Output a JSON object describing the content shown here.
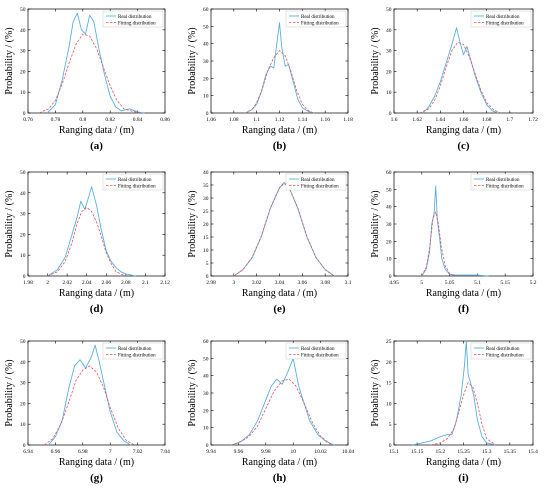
{
  "legend": {
    "real": "Real distribution",
    "fit": "Fitting distribution"
  },
  "colors": {
    "real": "#5ab0e0",
    "fit": "#e2535a",
    "axis": "#000000",
    "panel_bg": "#ffffff"
  },
  "chart_data": [
    {
      "type": "line",
      "panel": "a",
      "caption": "(a)",
      "xlabel": "Ranging data / (m)",
      "ylabel": "Probability / (%)",
      "xlim": [
        0.76,
        0.86
      ],
      "ylim": [
        0,
        50
      ],
      "xticks": [
        "0.76",
        "0.78",
        "0.8",
        "0.82",
        "0.84",
        "0.86"
      ],
      "yticks": [
        "0",
        "10",
        "20",
        "30",
        "40",
        "50"
      ],
      "legend_position": "top-right",
      "series": [
        {
          "name": "Real distribution",
          "x": [
            0.774,
            0.78,
            0.785,
            0.79,
            0.793,
            0.796,
            0.799,
            0.802,
            0.805,
            0.808,
            0.812,
            0.816,
            0.82,
            0.824,
            0.828,
            0.834,
            0.84,
            0.845
          ],
          "y": [
            0,
            4,
            16,
            32,
            44,
            48,
            40,
            38,
            47,
            44,
            30,
            18,
            8,
            3,
            1,
            2,
            0.5,
            0
          ]
        },
        {
          "name": "Fitting distribution",
          "x": [
            0.768,
            0.775,
            0.78,
            0.785,
            0.79,
            0.795,
            0.8,
            0.805,
            0.81,
            0.815,
            0.82,
            0.825,
            0.83,
            0.835,
            0.842
          ],
          "y": [
            0,
            2,
            6,
            14,
            24,
            33,
            38,
            37,
            31,
            22,
            13,
            6,
            2,
            1,
            0
          ]
        }
      ]
    },
    {
      "type": "line",
      "panel": "b",
      "caption": "(b)",
      "xlabel": "Ranging data / (m)",
      "ylabel": "Probability / (%)",
      "xlim": [
        1.06,
        1.18
      ],
      "ylim": [
        0,
        60
      ],
      "xticks": [
        "1.06",
        "1.08",
        "1.1",
        "1.12",
        "1.14",
        "1.16",
        "1.18"
      ],
      "yticks": [
        "0",
        "10",
        "20",
        "30",
        "40",
        "50",
        "60"
      ],
      "legend_position": "top-right",
      "series": [
        {
          "name": "Real distribution",
          "x": [
            1.09,
            1.096,
            1.1,
            1.104,
            1.108,
            1.112,
            1.115,
            1.118,
            1.12,
            1.122,
            1.125,
            1.128,
            1.132,
            1.136,
            1.14,
            1.145,
            1.15
          ],
          "y": [
            0,
            2,
            5,
            12,
            22,
            27,
            26,
            42,
            52,
            38,
            27,
            28,
            18,
            8,
            3,
            1,
            0
          ]
        },
        {
          "name": "Fitting distribution",
          "x": [
            1.09,
            1.096,
            1.1,
            1.105,
            1.11,
            1.115,
            1.12,
            1.125,
            1.13,
            1.135,
            1.14,
            1.145,
            1.15
          ],
          "y": [
            0,
            2,
            6,
            14,
            25,
            32,
            36,
            33,
            24,
            13,
            5,
            1.5,
            0
          ]
        }
      ]
    },
    {
      "type": "line",
      "panel": "c",
      "caption": "(c)",
      "xlabel": "Ranging data / (m)",
      "ylabel": "Probability / (%)",
      "xlim": [
        1.6,
        1.72
      ],
      "ylim": [
        0,
        50
      ],
      "xticks": [
        "1.6",
        "1.62",
        "1.64",
        "1.66",
        "1.68",
        "1.7",
        "1.72"
      ],
      "yticks": [
        "0",
        "10",
        "20",
        "30",
        "40",
        "50"
      ],
      "legend_position": "top-right",
      "series": [
        {
          "name": "Real distribution",
          "x": [
            1.625,
            1.63,
            1.635,
            1.64,
            1.645,
            1.65,
            1.654,
            1.657,
            1.66,
            1.663,
            1.666,
            1.67,
            1.675,
            1.68,
            1.685,
            1.69
          ],
          "y": [
            0,
            3,
            8,
            15,
            24,
            33,
            41,
            34,
            28,
            32,
            26,
            18,
            10,
            4,
            1,
            0
          ]
        },
        {
          "name": "Fitting distribution",
          "x": [
            1.622,
            1.63,
            1.635,
            1.64,
            1.645,
            1.65,
            1.655,
            1.66,
            1.665,
            1.67,
            1.675,
            1.68,
            1.686,
            1.692
          ],
          "y": [
            0,
            2,
            6,
            13,
            22,
            30,
            34,
            33,
            27,
            19,
            11,
            5,
            1.5,
            0
          ]
        }
      ]
    },
    {
      "type": "line",
      "panel": "d",
      "caption": "(d)",
      "xlabel": "Ranging data / (m)",
      "ylabel": "Probability / (%)",
      "xlim": [
        1.98,
        2.12
      ],
      "ylim": [
        0,
        50
      ],
      "xticks": [
        "1.98",
        "2",
        "2.02",
        "2.04",
        "2.06",
        "2.08",
        "2.1",
        "2.12"
      ],
      "yticks": [
        "0",
        "10",
        "20",
        "30",
        "40",
        "50"
      ],
      "legend_position": "top-right",
      "series": [
        {
          "name": "Real distribution",
          "x": [
            2.0,
            2.01,
            2.018,
            2.025,
            2.03,
            2.034,
            2.038,
            2.042,
            2.045,
            2.05,
            2.055,
            2.06,
            2.065,
            2.07,
            2.075,
            2.08,
            2.09
          ],
          "y": [
            0,
            3,
            9,
            20,
            28,
            36,
            32,
            38,
            43,
            34,
            22,
            12,
            7,
            4,
            2,
            1,
            0
          ]
        },
        {
          "name": "Fitting distribution",
          "x": [
            2.0,
            2.01,
            2.018,
            2.025,
            2.03,
            2.035,
            2.04,
            2.045,
            2.05,
            2.055,
            2.06,
            2.065,
            2.07,
            2.08
          ],
          "y": [
            0,
            2,
            7,
            16,
            25,
            31,
            33,
            31,
            26,
            19,
            11,
            6,
            2,
            0
          ]
        }
      ]
    },
    {
      "type": "line",
      "panel": "e",
      "caption": "(e)",
      "xlabel": "Ranging data / (m)",
      "ylabel": "Probability / (%)",
      "xlim": [
        2.98,
        3.1
      ],
      "ylim": [
        0,
        40
      ],
      "xticks": [
        "2.98",
        "3",
        "3.02",
        "3.04",
        "3.06",
        "3.08",
        "3.1"
      ],
      "yticks": [
        "0",
        "5",
        "10",
        "15",
        "20",
        "25",
        "30",
        "35",
        "40"
      ],
      "legend_position": "top-right",
      "series": [
        {
          "name": "Real distribution",
          "x": [
            3.0,
            3.008,
            3.016,
            3.024,
            3.032,
            3.04,
            3.044,
            3.048,
            3.056,
            3.064,
            3.072,
            3.08,
            3.088
          ],
          "y": [
            0,
            2.5,
            7,
            15,
            26,
            34,
            36,
            34.5,
            26,
            15,
            7,
            2.5,
            0
          ]
        },
        {
          "name": "Fitting distribution",
          "x": [
            3.0,
            3.008,
            3.016,
            3.024,
            3.032,
            3.04,
            3.044,
            3.048,
            3.056,
            3.064,
            3.072,
            3.08,
            3.088
          ],
          "y": [
            0,
            2.4,
            7.2,
            15.3,
            26.2,
            33.8,
            35.6,
            34.2,
            26.3,
            15.2,
            7.1,
            2.4,
            0
          ]
        }
      ]
    },
    {
      "type": "line",
      "panel": "f",
      "caption": "(f)",
      "xlabel": "Ranging data / (m)",
      "ylabel": "Probability / (%)",
      "xlim": [
        4.95,
        5.2
      ],
      "ylim": [
        0,
        60
      ],
      "xticks": [
        "4.95",
        "5",
        "5.05",
        "5.1",
        "5.15",
        "5.2"
      ],
      "yticks": [
        "0",
        "10",
        "20",
        "30",
        "40",
        "50",
        "60"
      ],
      "legend_position": "top-right",
      "series": [
        {
          "name": "Real distribution",
          "x": [
            5.0,
            5.008,
            5.014,
            5.018,
            5.022,
            5.025,
            5.028,
            5.032,
            5.036,
            5.042,
            5.05,
            5.06,
            5.08,
            5.1,
            5.12
          ],
          "y": [
            0,
            4,
            14,
            30,
            36,
            52,
            32,
            22,
            10,
            4,
            1,
            0.5,
            0.5,
            0.5,
            0
          ]
        },
        {
          "name": "Fitting distribution",
          "x": [
            5.0,
            5.008,
            5.014,
            5.02,
            5.025,
            5.03,
            5.035,
            5.042,
            5.05,
            5.06
          ],
          "y": [
            0,
            5,
            16,
            33,
            37,
            30,
            17,
            6,
            1.5,
            0
          ]
        }
      ]
    },
    {
      "type": "line",
      "panel": "g",
      "caption": "(g)",
      "xlabel": "Ranging data / (m)",
      "ylabel": "Probability / (%)",
      "xlim": [
        6.94,
        7.04
      ],
      "ylim": [
        0,
        50
      ],
      "xticks": [
        "6.94",
        "6.96",
        "6.98",
        "7",
        "7.02",
        "7.04"
      ],
      "yticks": [
        "0",
        "10",
        "20",
        "30",
        "40",
        "50"
      ],
      "legend_position": "top-right",
      "series": [
        {
          "name": "Real distribution",
          "x": [
            6.955,
            6.96,
            6.965,
            6.97,
            6.974,
            6.978,
            6.982,
            6.986,
            6.989,
            6.992,
            6.996,
            7.0,
            7.005,
            7.01,
            7.015
          ],
          "y": [
            0,
            4,
            12,
            28,
            38,
            41,
            37,
            42,
            48,
            40,
            28,
            16,
            6,
            2,
            0
          ]
        },
        {
          "name": "Fitting distribution",
          "x": [
            6.952,
            6.958,
            6.964,
            6.97,
            6.975,
            6.98,
            6.985,
            6.99,
            6.995,
            7.0,
            7.006,
            7.012,
            7.018
          ],
          "y": [
            0,
            3,
            10,
            21,
            31,
            36,
            38,
            35,
            28,
            18,
            8,
            2,
            0
          ]
        }
      ]
    },
    {
      "type": "line",
      "panel": "h",
      "caption": "(h)",
      "xlabel": "Ranging data / (m)",
      "ylabel": "Probability / (%)",
      "xlim": [
        9.94,
        10.04
      ],
      "ylim": [
        0,
        60
      ],
      "xticks": [
        "9.94",
        "9.96",
        "9.98",
        "10",
        "10.02",
        "10.04"
      ],
      "yticks": [
        "0",
        "10",
        "20",
        "30",
        "40",
        "50",
        "60"
      ],
      "legend_position": "top-right",
      "series": [
        {
          "name": "Real distribution",
          "x": [
            9.955,
            9.962,
            9.968,
            9.974,
            9.979,
            9.984,
            9.988,
            9.992,
            9.996,
            10.0,
            10.004,
            10.008,
            10.012,
            10.018,
            10.024,
            10.03
          ],
          "y": [
            0,
            2,
            6,
            14,
            24,
            34,
            38,
            35,
            42,
            50,
            34,
            24,
            14,
            6,
            2,
            0
          ]
        },
        {
          "name": "Fitting distribution",
          "x": [
            9.955,
            9.962,
            9.968,
            9.974,
            9.98,
            9.986,
            9.992,
            9.997,
            10.002,
            10.008,
            10.014,
            10.02,
            10.028
          ],
          "y": [
            0,
            2,
            5,
            11,
            21,
            31,
            37,
            38,
            34,
            24,
            13,
            5,
            0
          ]
        }
      ]
    },
    {
      "type": "line",
      "panel": "i",
      "caption": "(i)",
      "xlabel": "Ranging data / (m)",
      "ylabel": "Probability / (%)",
      "xlim": [
        15.1,
        15.4
      ],
      "ylim": [
        0,
        25
      ],
      "xticks": [
        "15.1",
        "15.15",
        "15.2",
        "15.25",
        "15.3",
        "15.35",
        "15.4"
      ],
      "yticks": [
        "0",
        "5",
        "10",
        "15",
        "20",
        "25"
      ],
      "legend_position": "top-right",
      "series": [
        {
          "name": "Real distribution",
          "x": [
            15.14,
            15.16,
            15.18,
            15.2,
            15.215,
            15.225,
            15.235,
            15.245,
            15.252,
            15.256,
            15.26,
            15.265,
            15.272,
            15.28,
            15.29,
            15.3,
            15.32
          ],
          "y": [
            0,
            0.5,
            1,
            2,
            2.5,
            2.5,
            6,
            12,
            19,
            25,
            17,
            15,
            12,
            6,
            2,
            0.5,
            0
          ]
        },
        {
          "name": "Fitting distribution",
          "x": [
            15.18,
            15.2,
            15.215,
            15.23,
            15.24,
            15.25,
            15.26,
            15.27,
            15.28,
            15.29,
            15.3,
            15.32
          ],
          "y": [
            0,
            0.5,
            1.5,
            4,
            8,
            12,
            15,
            14,
            10,
            5,
            1.5,
            0
          ]
        }
      ]
    }
  ]
}
